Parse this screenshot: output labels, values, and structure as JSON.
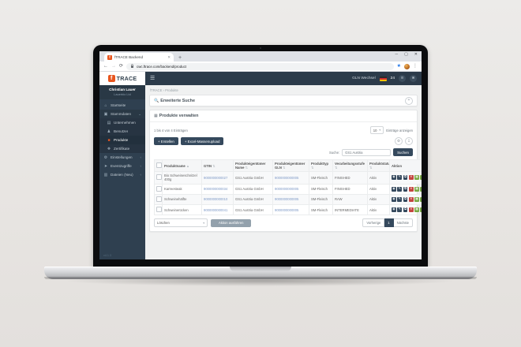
{
  "browser": {
    "tab_title": "fTRACE Backend",
    "tab_close_icon": "✕",
    "new_tab_icon": "+",
    "window_controls": {
      "minimize": "─",
      "maximize": "▢",
      "close": "✕"
    },
    "nav": {
      "back": "←",
      "forward": "→",
      "reload": "⟳"
    },
    "url": "cwc.ftrace.com/backend/product",
    "kebab_icon": "⋮",
    "star_icon": "★"
  },
  "app": {
    "colors": {
      "accent_orange": "#e8551e",
      "navy": "#35495d",
      "green": "#79a843",
      "red": "#c4453f",
      "link_blue": "#7f9ac7"
    },
    "logo": {
      "f": "f",
      "text": "TRACE"
    },
    "header": {
      "burger_icon": "☰",
      "gln_switch": "GLN Wechsel",
      "badge_count": "24"
    },
    "sidebar": {
      "user_name": "Christian Lauer",
      "user_company": "Lauerbio Ltd",
      "version": "v4.1.3",
      "items": [
        {
          "id": "startseite",
          "label": "Startseite",
          "icon": "home"
        },
        {
          "id": "stammdaten",
          "label": "Stammdaten",
          "icon": "desktop",
          "chevron": true,
          "open": true
        },
        {
          "id": "unternehmen",
          "label": "Unternehmen",
          "icon": "building",
          "sub": true
        },
        {
          "id": "benutzer",
          "label": "Benutzer",
          "icon": "users",
          "sub": true
        },
        {
          "id": "produkte",
          "label": "Produkte",
          "icon": "box",
          "sub": true,
          "active": true
        },
        {
          "id": "zertifikate",
          "label": "Zertifikate",
          "icon": "certificate",
          "sub": true
        },
        {
          "id": "einstellungen",
          "label": "Einstellungen",
          "icon": "gear",
          "chevron": true
        },
        {
          "id": "eventzugriffe",
          "label": "Eventzugriffe",
          "icon": "key",
          "chevron": true
        },
        {
          "id": "dateien",
          "label": "Dateien (Neu)",
          "icon": "files",
          "chevron": true
        }
      ]
    },
    "breadcrumb": {
      "root": "fTRACE",
      "sep": "›",
      "current": "Produkte"
    },
    "search_panel": {
      "title": "Erweiterte Suche",
      "expand_icon": "+"
    },
    "manage": {
      "title": "Produkte verwalten",
      "entries_info": "1 bis 4 von 4 Einträgen",
      "page_size": "10",
      "page_size_label": "Einträge anzeigen",
      "create_button": "+ Erstellen",
      "excel_button": "+ Excel-Massenupload",
      "search_label": "Suche:",
      "search_value": "GS1 Austria",
      "search_button": "Suchen",
      "bulk_select": "Löschen",
      "bulk_button": "Aktion ausführen",
      "pagination": {
        "prev": "Vorherige",
        "page": "1",
        "next": "Nächste"
      },
      "table": {
        "columns": [
          {
            "label": "Produktname",
            "sort": "asc"
          },
          {
            "label": "GTIN",
            "sort": "both"
          },
          {
            "label": "Produkteigentümer Name",
            "sort": "both"
          },
          {
            "label": "Produkteigentümer GLN",
            "sort": "both"
          },
          {
            "label": "Produkttyp",
            "sort": "both"
          },
          {
            "label": "Verarbeitungsstufe",
            "sort": "both"
          },
          {
            "label": "Produktstatus",
            "sort": "both"
          },
          {
            "label": "Aktion",
            "sort": "none"
          }
        ],
        "rows": [
          {
            "name": "Bio Schweineschnitzel 400g",
            "gtin": "9000000000027",
            "owner": "GS1 Austria GmbH",
            "gln": "9000000000005",
            "type": "SM-Fleisch",
            "stage": "FINISHED",
            "status": "Aktiv"
          },
          {
            "name": "Karreesteak",
            "gtin": "9000000000034",
            "owner": "GS1 Austria GmbH",
            "gln": "9000000000005",
            "type": "SM-Fleisch",
            "stage": "FINISHED",
            "status": "Aktiv"
          },
          {
            "name": "Schweinehälfte",
            "gtin": "9000000000010",
            "owner": "GS1 Austria GmbH",
            "gln": "9000000000005",
            "type": "SM-Fleisch",
            "stage": "RAW",
            "status": "Aktiv"
          },
          {
            "name": "Schweinerücken",
            "gtin": "9000000000041",
            "owner": "GS1 Austria GmbH",
            "gln": "9000000000005",
            "type": "SM-Fleisch",
            "stage": "INTERMEDIATE",
            "status": "Aktiv"
          }
        ],
        "row_actions": [
          {
            "id": "view",
            "style": "navy"
          },
          {
            "id": "edit",
            "style": "navy"
          },
          {
            "id": "copy",
            "style": "navy"
          },
          {
            "id": "delete",
            "style": "red"
          },
          {
            "id": "qr-code",
            "style": "green"
          },
          {
            "id": "barcode",
            "style": "green"
          }
        ]
      }
    }
  }
}
